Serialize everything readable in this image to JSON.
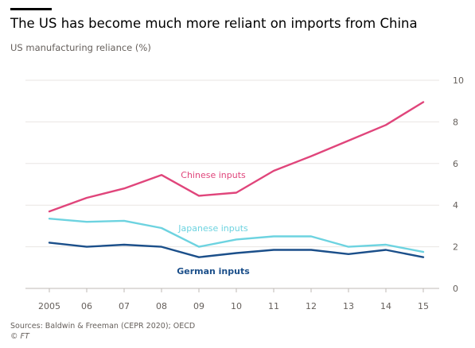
{
  "header": {
    "title": "The US has become much more reliant on imports from China",
    "subtitle": "US manufacturing reliance (%)"
  },
  "footer": {
    "source": "Sources: Baldwin & Freeman (CEPR 2020); OECD",
    "credit": "© FT"
  },
  "chart_data": {
    "type": "line",
    "title": "The US has become much more reliant on imports from China",
    "subtitle": "US manufacturing reliance (%)",
    "x": [
      "2005",
      "06",
      "07",
      "08",
      "09",
      "10",
      "11",
      "12",
      "13",
      "14",
      "15"
    ],
    "ylim": [
      0,
      10
    ],
    "yticks": [
      0,
      2,
      4,
      6,
      8,
      10
    ],
    "yaxis_side": "right",
    "grid": true,
    "series": [
      {
        "name": "Chinese inputs",
        "color": "#e0457b",
        "values": [
          3.7,
          4.35,
          4.8,
          5.45,
          4.45,
          4.6,
          5.65,
          6.35,
          7.1,
          7.85,
          8.95
        ]
      },
      {
        "name": "Japanese inputs",
        "color": "#6dd3e0",
        "values": [
          3.35,
          3.2,
          3.25,
          2.9,
          2.0,
          2.35,
          2.5,
          2.5,
          2.0,
          2.1,
          1.75
        ]
      },
      {
        "name": "German inputs",
        "color": "#1b4f8a",
        "values": [
          2.2,
          2.0,
          2.1,
          2.0,
          1.5,
          1.7,
          1.85,
          1.85,
          1.65,
          1.85,
          1.5
        ]
      }
    ]
  }
}
